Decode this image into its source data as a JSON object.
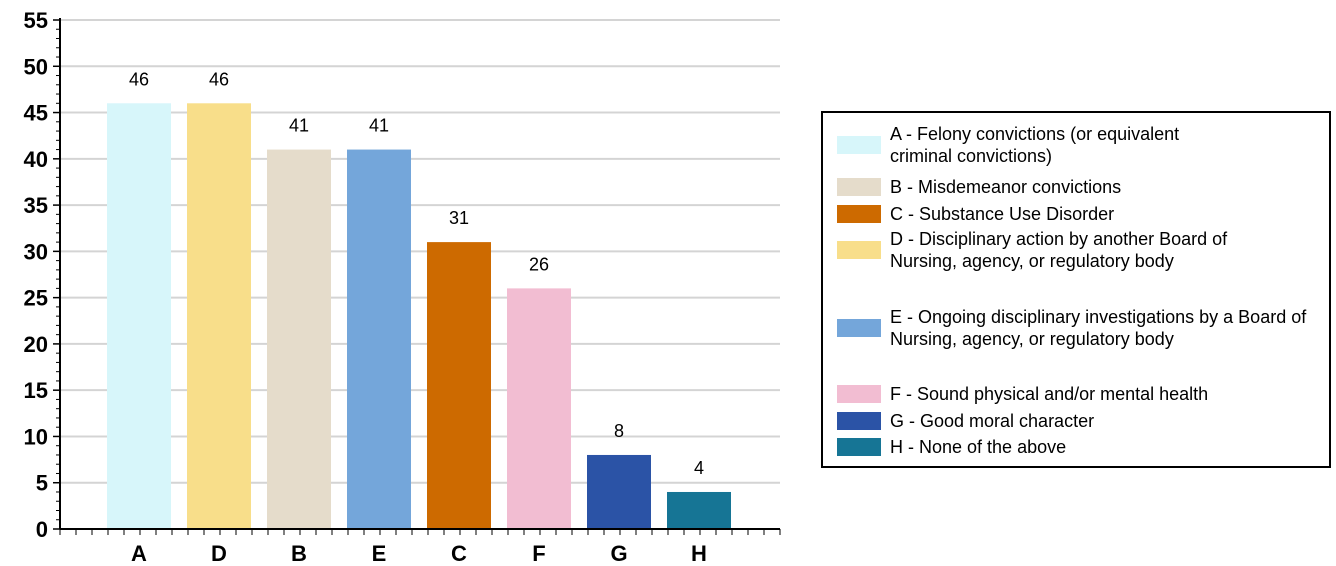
{
  "chart_data": {
    "type": "bar",
    "categories": [
      "A",
      "D",
      "B",
      "E",
      "C",
      "F",
      "G",
      "H"
    ],
    "values": [
      46,
      46,
      41,
      41,
      31,
      26,
      8,
      4
    ],
    "colors": [
      "#d7f6fa",
      "#f8de8a",
      "#e5dccb",
      "#74a6da",
      "#cd6a00",
      "#f2bdd2",
      "#2b53a6",
      "#167595"
    ],
    "ylim": [
      0,
      55
    ],
    "yticks": [
      0,
      5,
      10,
      15,
      20,
      25,
      30,
      35,
      40,
      45,
      50,
      55
    ],
    "grid": true,
    "legend_position": "right",
    "legend": [
      {
        "label": "A - Felony convictions (or equivalent criminal convictions)",
        "color": "#d7f6fa"
      },
      {
        "label": "B - Misdemeanor convictions",
        "color": "#e5dccb"
      },
      {
        "label": "C - Substance Use Disorder",
        "color": "#cd6a00"
      },
      {
        "label": "D - Disciplinary action by another Board of Nursing, agency, or regulatory body",
        "color": "#f8de8a"
      },
      {
        "label": "E - Ongoing disciplinary investigations by a Board of Nursing, agency, or regulatory body",
        "color": "#74a6da"
      },
      {
        "label": "F - Sound physical and/or mental health",
        "color": "#f2bdd2"
      },
      {
        "label": "G - Good moral character",
        "color": "#2b53a6"
      },
      {
        "label": "H - None of the above",
        "color": "#167595"
      }
    ]
  }
}
